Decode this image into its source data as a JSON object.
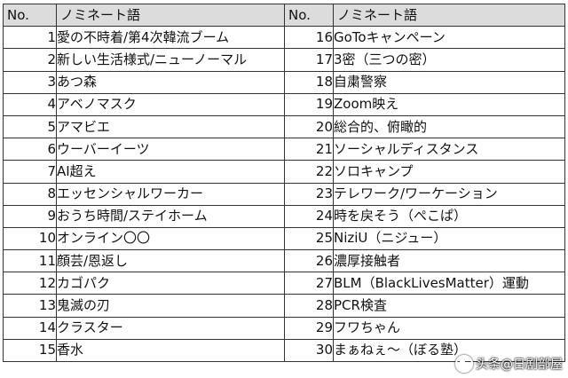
{
  "headers": {
    "no": "No.",
    "term": "ノミネート語"
  },
  "rows": [
    {
      "no_a": "1",
      "term_a": "愛の不時着/第4次韓流ブーム",
      "no_b": "16",
      "term_b": "GoToキャンペーン"
    },
    {
      "no_a": "2",
      "term_a": "新しい生活様式/ニューノーマル",
      "no_b": "17",
      "term_b": "3密（三つの密）"
    },
    {
      "no_a": "3",
      "term_a": "あつ森",
      "no_b": "18",
      "term_b": "自粛警察"
    },
    {
      "no_a": "4",
      "term_a": "アベノマスク",
      "no_b": "19",
      "term_b": "Zoom映え"
    },
    {
      "no_a": "5",
      "term_a": "アマビエ",
      "no_b": "20",
      "term_b": "総合的、俯瞰的"
    },
    {
      "no_a": "6",
      "term_a": "ウーバーイーツ",
      "no_b": "21",
      "term_b": "ソーシャルディスタンス"
    },
    {
      "no_a": "7",
      "term_a": "AI超え",
      "no_b": "22",
      "term_b": "ソロキャンプ"
    },
    {
      "no_a": "8",
      "term_a": "エッセンシャルワーカー",
      "no_b": "23",
      "term_b": "テレワーク/ワーケーション"
    },
    {
      "no_a": "9",
      "term_a": "おうち時間/ステイホーム",
      "no_b": "24",
      "term_b": "時を戻そう（ぺこぱ）"
    },
    {
      "no_a": "10",
      "term_a": "オンライン〇〇",
      "no_b": "25",
      "term_b": "NiziU（ニジュー）"
    },
    {
      "no_a": "11",
      "term_a": "顔芸/恩返し",
      "no_b": "26",
      "term_b": "濃厚接触者"
    },
    {
      "no_a": "12",
      "term_a": "カゴパク",
      "no_b": "27",
      "term_b": "BLM（BlackLivesMatter）運動"
    },
    {
      "no_a": "13",
      "term_a": "鬼滅の刃",
      "no_b": "28",
      "term_b": "PCR検査"
    },
    {
      "no_a": "14",
      "term_a": "クラスター",
      "no_b": "29",
      "term_b": "フワちゃん"
    },
    {
      "no_a": "15",
      "term_a": "香水",
      "no_b": "30",
      "term_b": "まぁねぇ～（ぼる塾）"
    }
  ],
  "watermark": {
    "text": "头条@日剧部屋"
  }
}
